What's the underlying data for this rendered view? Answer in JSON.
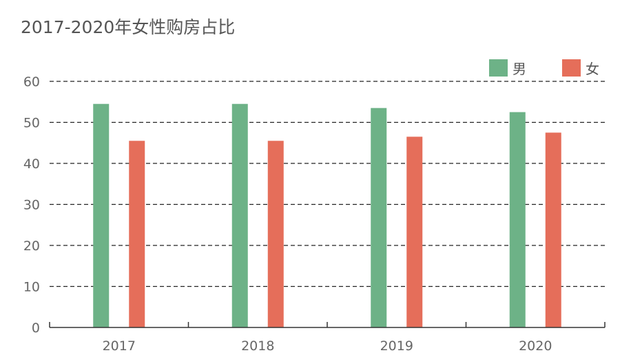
{
  "chart_data": {
    "type": "bar",
    "title": "2017-2020年女性购房占比",
    "categories": [
      "2017",
      "2018",
      "2019",
      "2020"
    ],
    "series": [
      {
        "name": "男",
        "values": [
          54.5,
          54.5,
          53.5,
          52.5
        ],
        "color": "#6db287"
      },
      {
        "name": "女",
        "values": [
          45.5,
          45.5,
          46.5,
          47.5
        ],
        "color": "#e56e5a"
      }
    ],
    "y_ticks": [
      "0",
      "10",
      "20",
      "30",
      "40",
      "50",
      "60"
    ],
    "ylim": [
      0,
      60
    ],
    "grid": true,
    "legend_position": "top-right"
  }
}
